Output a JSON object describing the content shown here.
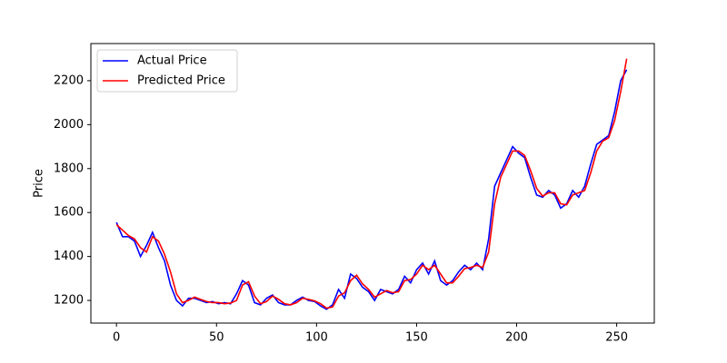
{
  "chart_data": {
    "type": "line",
    "ylabel": "Price",
    "x": [
      0,
      3,
      6,
      9,
      12,
      15,
      18,
      21,
      24,
      27,
      30,
      33,
      36,
      39,
      42,
      45,
      48,
      51,
      54,
      57,
      60,
      63,
      66,
      69,
      72,
      75,
      78,
      81,
      84,
      87,
      90,
      93,
      96,
      99,
      102,
      105,
      108,
      111,
      114,
      117,
      120,
      123,
      126,
      129,
      132,
      135,
      138,
      141,
      144,
      147,
      150,
      153,
      156,
      159,
      162,
      165,
      168,
      171,
      174,
      177,
      180,
      183,
      186,
      189,
      192,
      195,
      198,
      201,
      204,
      207,
      210,
      213,
      216,
      219,
      222,
      225,
      228,
      231,
      234,
      237,
      240,
      243,
      246,
      249,
      252,
      255
    ],
    "series": [
      {
        "name": "Actual Price",
        "color": "#0000ff",
        "values": [
          1555,
          1490,
          1490,
          1470,
          1400,
          1450,
          1510,
          1440,
          1380,
          1270,
          1200,
          1175,
          1210,
          1210,
          1200,
          1190,
          1195,
          1185,
          1190,
          1185,
          1230,
          1290,
          1270,
          1190,
          1180,
          1210,
          1225,
          1190,
          1180,
          1180,
          1200,
          1215,
          1200,
          1195,
          1175,
          1160,
          1180,
          1250,
          1210,
          1320,
          1300,
          1260,
          1240,
          1200,
          1250,
          1240,
          1230,
          1250,
          1310,
          1280,
          1340,
          1370,
          1320,
          1380,
          1290,
          1270,
          1290,
          1330,
          1360,
          1340,
          1370,
          1340,
          1480,
          1720,
          1780,
          1840,
          1900,
          1870,
          1850,
          1760,
          1680,
          1670,
          1700,
          1680,
          1620,
          1640,
          1700,
          1670,
          1720,
          1820,
          1910,
          1930,
          1950,
          2060,
          2200,
          2250
        ]
      },
      {
        "name": "Predicted Price",
        "color": "#ff0000",
        "values": [
          1545,
          1520,
          1495,
          1480,
          1440,
          1420,
          1490,
          1470,
          1410,
          1330,
          1230,
          1190,
          1200,
          1215,
          1205,
          1195,
          1190,
          1190,
          1185,
          1188,
          1200,
          1270,
          1285,
          1220,
          1185,
          1195,
          1220,
          1205,
          1185,
          1180,
          1190,
          1210,
          1205,
          1198,
          1185,
          1165,
          1170,
          1220,
          1235,
          1290,
          1315,
          1275,
          1250,
          1215,
          1230,
          1245,
          1235,
          1240,
          1290,
          1295,
          1320,
          1360,
          1340,
          1360,
          1320,
          1280,
          1280,
          1310,
          1345,
          1350,
          1360,
          1350,
          1420,
          1640,
          1760,
          1820,
          1880,
          1880,
          1860,
          1790,
          1710,
          1675,
          1690,
          1690,
          1640,
          1635,
          1680,
          1690,
          1700,
          1780,
          1880,
          1925,
          1940,
          2020,
          2150,
          2300
        ]
      }
    ],
    "xlim": [
      -12.8,
      268.8
    ],
    "ylim": [
      1097,
      2369
    ],
    "xticks": [
      0,
      50,
      100,
      150,
      200,
      250
    ],
    "yticks": [
      1200,
      1400,
      1600,
      1800,
      2000,
      2200
    ],
    "legend": "upper left"
  }
}
